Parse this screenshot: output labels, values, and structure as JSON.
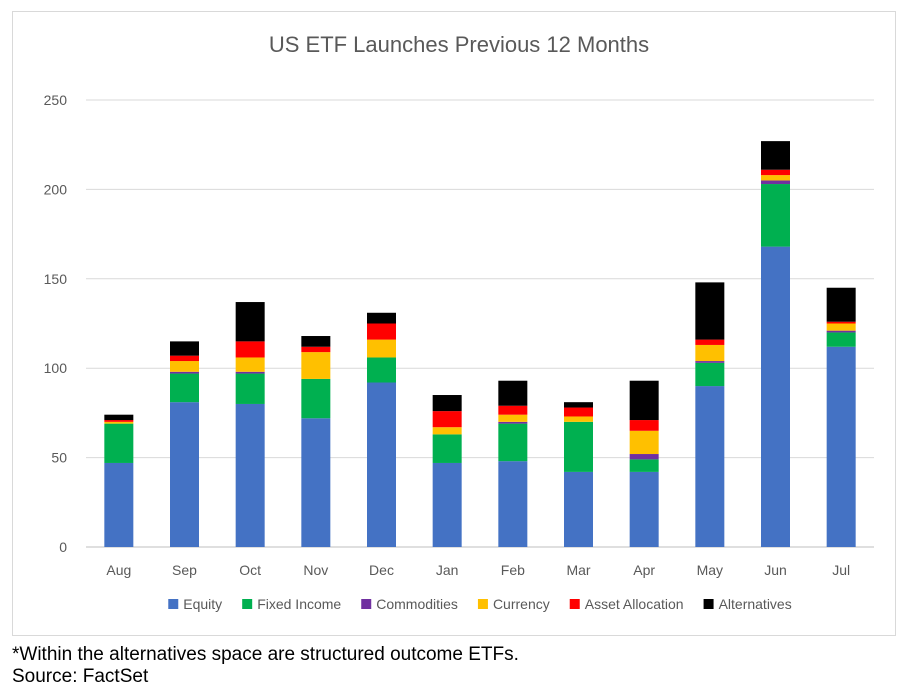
{
  "chart_data": {
    "type": "bar",
    "stacked": true,
    "title": "US ETF Launches Previous 12 Months",
    "xlabel": "",
    "ylabel": "",
    "ylim": [
      0,
      250
    ],
    "yticks": [
      0,
      50,
      100,
      150,
      200,
      250
    ],
    "grid": true,
    "legend_position": "bottom",
    "categories": [
      "Aug",
      "Sep",
      "Oct",
      "Nov",
      "Dec",
      "Jan",
      "Feb",
      "Mar",
      "Apr",
      "May",
      "Jun",
      "Jul"
    ],
    "series": [
      {
        "name": "Equity",
        "color": "#4472c4",
        "values": [
          47,
          81,
          80,
          72,
          92,
          47,
          48,
          42,
          42,
          90,
          168,
          112
        ]
      },
      {
        "name": "Fixed Income",
        "color": "#00b050",
        "values": [
          22,
          16,
          17,
          22,
          14,
          16,
          21,
          28,
          7,
          13,
          35,
          8
        ]
      },
      {
        "name": "Commodities",
        "color": "#7030a0",
        "values": [
          0,
          1,
          1,
          0,
          0,
          0,
          1,
          0,
          3,
          1,
          2,
          1
        ]
      },
      {
        "name": "Currency",
        "color": "#ffc000",
        "values": [
          1,
          6,
          8,
          15,
          10,
          4,
          4,
          3,
          13,
          9,
          3,
          4
        ]
      },
      {
        "name": "Asset Allocation",
        "color": "#ff0000",
        "values": [
          1,
          3,
          9,
          3,
          9,
          9,
          5,
          5,
          6,
          3,
          3,
          1
        ]
      },
      {
        "name": "Alternatives",
        "color": "#000000",
        "values": [
          3,
          8,
          22,
          6,
          6,
          9,
          14,
          3,
          22,
          32,
          16,
          19
        ]
      }
    ]
  },
  "footnote": "*Within the alternatives space are structured outcome ETFs.",
  "source": "Source: FactSet"
}
